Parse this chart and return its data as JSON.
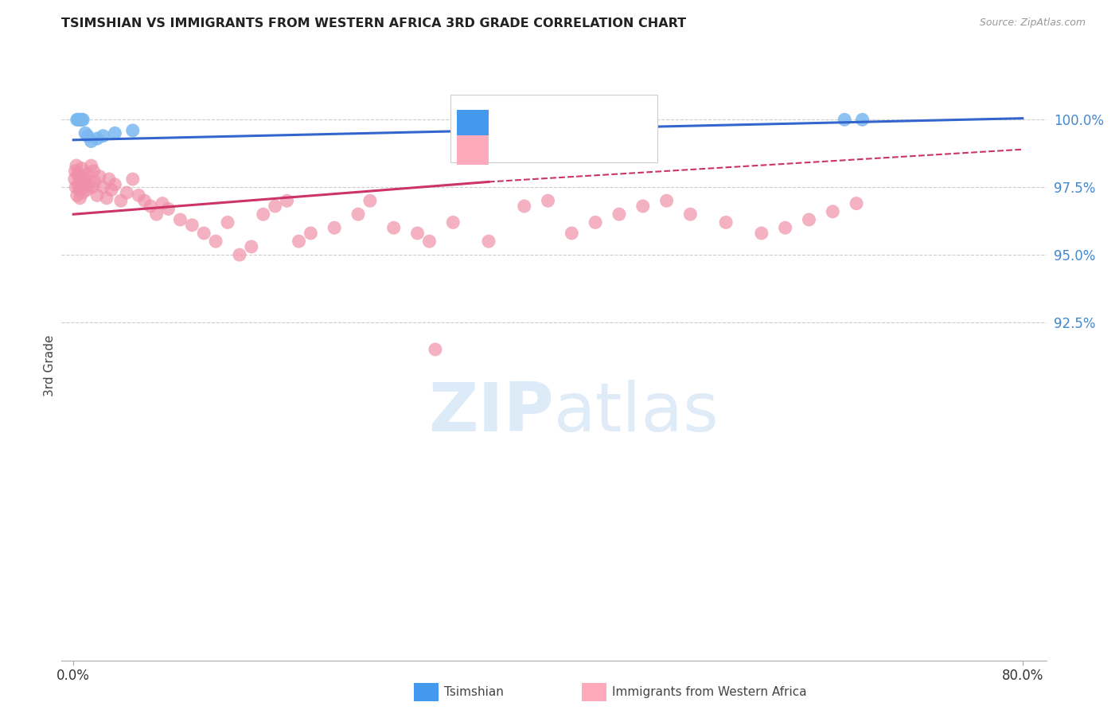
{
  "title": "TSIMSHIAN VS IMMIGRANTS FROM WESTERN AFRICA 3RD GRADE CORRELATION CHART",
  "source": "Source: ZipAtlas.com",
  "ylabel": "3rd Grade",
  "blue_color": "#7ab8f0",
  "pink_color": "#f090a8",
  "blue_line_color": "#3366cc",
  "pink_line_color": "#cc3366",
  "blue_legend_color": "#4499ee",
  "pink_legend_color": "#ffaabb",
  "tick_color": "#4488cc",
  "grid_color": "#cccccc",
  "background_color": "#ffffff",
  "y_ticks": [
    92.5,
    95.0,
    97.5,
    100.0
  ],
  "x_ticks": [
    0,
    80
  ],
  "blue_line_x0": 0,
  "blue_line_y0": 99.25,
  "blue_line_x1": 80,
  "blue_line_y1": 100.05,
  "pink_line_x0": 0,
  "pink_line_y0": 96.5,
  "pink_solid_x1": 35,
  "pink_solid_y1": 97.7,
  "pink_dash_x1": 80,
  "pink_dash_y1": 98.9,
  "blue_pts_x": [
    0.3,
    0.4,
    0.5,
    0.6,
    0.7,
    0.8,
    1.0,
    1.2,
    1.5,
    2.0,
    2.5,
    3.5,
    5.0,
    65.0,
    66.5
  ],
  "blue_pts_y": [
    100.0,
    100.0,
    100.0,
    100.0,
    100.0,
    100.0,
    99.5,
    99.4,
    99.2,
    99.3,
    99.4,
    99.5,
    99.6,
    100.0,
    100.0
  ],
  "pink_pts_x": [
    0.1,
    0.15,
    0.2,
    0.25,
    0.3,
    0.35,
    0.4,
    0.45,
    0.5,
    0.55,
    0.6,
    0.65,
    0.7,
    0.75,
    0.8,
    0.9,
    1.0,
    1.1,
    1.2,
    1.3,
    1.5,
    1.6,
    1.7,
    1.8,
    2.0,
    2.2,
    2.5,
    2.8,
    3.0,
    3.2,
    3.5,
    4.0,
    4.5,
    5.0,
    5.5,
    6.0,
    6.5,
    7.0,
    7.5,
    8.0,
    9.0,
    10.0,
    11.0,
    12.0,
    13.0,
    14.0,
    15.0,
    16.0,
    17.0,
    18.0,
    19.0,
    20.0,
    22.0,
    24.0,
    25.0,
    27.0,
    29.0,
    30.0,
    32.0,
    35.0,
    38.0,
    40.0,
    42.0,
    44.0,
    46.0,
    48.0,
    50.0,
    52.0,
    55.0,
    58.0,
    60.0,
    62.0,
    64.0,
    66.0,
    30.5
  ],
  "pink_pts_y": [
    97.8,
    98.1,
    97.5,
    98.3,
    97.2,
    98.0,
    97.6,
    97.9,
    97.4,
    97.1,
    97.8,
    97.5,
    98.2,
    97.9,
    97.3,
    97.6,
    97.8,
    97.4,
    98.0,
    97.6,
    98.3,
    97.5,
    98.1,
    97.7,
    97.2,
    97.9,
    97.5,
    97.1,
    97.8,
    97.4,
    97.6,
    97.0,
    97.3,
    97.8,
    97.2,
    97.0,
    96.8,
    96.5,
    96.9,
    96.7,
    96.3,
    96.1,
    95.8,
    95.5,
    96.2,
    95.0,
    95.3,
    96.5,
    96.8,
    97.0,
    95.5,
    95.8,
    96.0,
    96.5,
    97.0,
    96.0,
    95.8,
    95.5,
    96.2,
    95.5,
    96.8,
    97.0,
    95.8,
    96.2,
    96.5,
    96.8,
    97.0,
    96.5,
    96.2,
    95.8,
    96.0,
    96.3,
    96.6,
    96.9,
    91.5
  ]
}
